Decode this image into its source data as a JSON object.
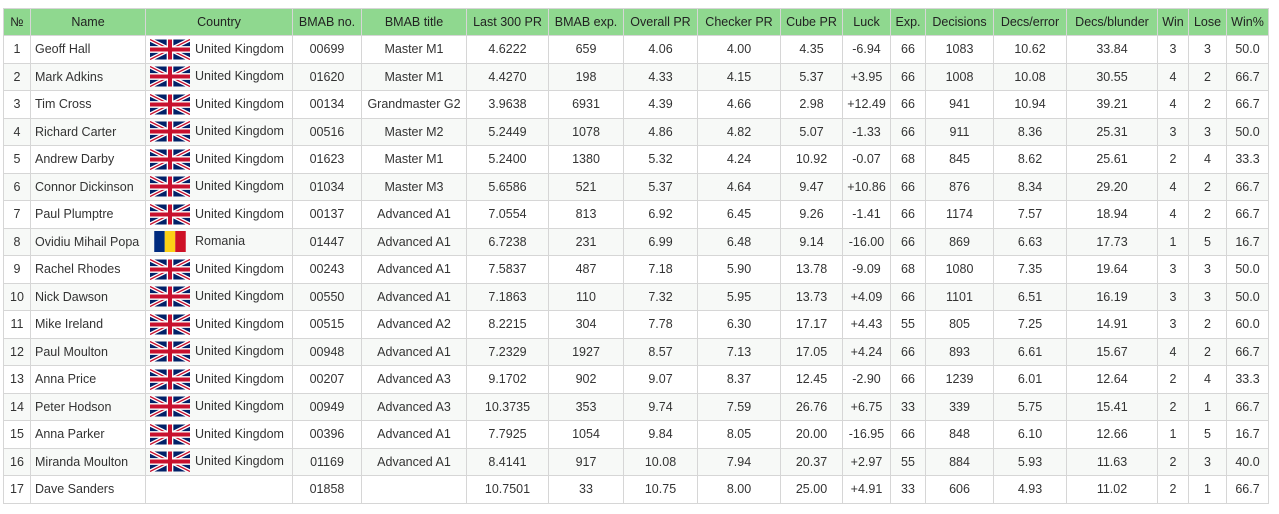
{
  "table": {
    "header": [
      "№",
      "Name",
      "Country",
      "BMAB no.",
      "BMAB title",
      "Last 300 PR",
      "BMAB exp.",
      "Overall PR",
      "Checker PR",
      "Cube PR",
      "Luck",
      "Exp.",
      "Decisions",
      "Decs/error",
      "Decs/blunder",
      "Win",
      "Lose",
      "Win%"
    ],
    "rows": [
      [
        "1",
        "Geoff Hall",
        "United Kingdom",
        "00699",
        "Master M1",
        "4.6222",
        "659",
        "4.06",
        "4.00",
        "4.35",
        "-6.94",
        "66",
        "1083",
        "10.62",
        "33.84",
        "3",
        "3",
        "50.0"
      ],
      [
        "2",
        "Mark Adkins",
        "United Kingdom",
        "01620",
        "Master M1",
        "4.4270",
        "198",
        "4.33",
        "4.15",
        "5.37",
        "+3.95",
        "66",
        "1008",
        "10.08",
        "30.55",
        "4",
        "2",
        "66.7"
      ],
      [
        "3",
        "Tim Cross",
        "United Kingdom",
        "00134",
        "Grandmaster G2",
        "3.9638",
        "6931",
        "4.39",
        "4.66",
        "2.98",
        "+12.49",
        "66",
        "941",
        "10.94",
        "39.21",
        "4",
        "2",
        "66.7"
      ],
      [
        "4",
        "Richard Carter",
        "United Kingdom",
        "00516",
        "Master M2",
        "5.2449",
        "1078",
        "4.86",
        "4.82",
        "5.07",
        "-1.33",
        "66",
        "911",
        "8.36",
        "25.31",
        "3",
        "3",
        "50.0"
      ],
      [
        "5",
        "Andrew Darby",
        "United Kingdom",
        "01623",
        "Master M1",
        "5.2400",
        "1380",
        "5.32",
        "4.24",
        "10.92",
        "-0.07",
        "68",
        "845",
        "8.62",
        "25.61",
        "2",
        "4",
        "33.3"
      ],
      [
        "6",
        "Connor Dickinson",
        "United Kingdom",
        "01034",
        "Master M3",
        "5.6586",
        "521",
        "5.37",
        "4.64",
        "9.47",
        "+10.86",
        "66",
        "876",
        "8.34",
        "29.20",
        "4",
        "2",
        "66.7"
      ],
      [
        "7",
        "Paul Plumptre",
        "United Kingdom",
        "00137",
        "Advanced A1",
        "7.0554",
        "813",
        "6.92",
        "6.45",
        "9.26",
        "-1.41",
        "66",
        "1174",
        "7.57",
        "18.94",
        "4",
        "2",
        "66.7"
      ],
      [
        "8",
        "Ovidiu Mihail Popa",
        "Romania",
        "01447",
        "Advanced A1",
        "6.7238",
        "231",
        "6.99",
        "6.48",
        "9.14",
        "-16.00",
        "66",
        "869",
        "6.63",
        "17.73",
        "1",
        "5",
        "16.7"
      ],
      [
        "9",
        "Rachel Rhodes",
        "United Kingdom",
        "00243",
        "Advanced A1",
        "7.5837",
        "487",
        "7.18",
        "5.90",
        "13.78",
        "-9.09",
        "68",
        "1080",
        "7.35",
        "19.64",
        "3",
        "3",
        "50.0"
      ],
      [
        "10",
        "Nick Dawson",
        "United Kingdom",
        "00550",
        "Advanced A1",
        "7.1863",
        "110",
        "7.32",
        "5.95",
        "13.73",
        "+4.09",
        "66",
        "1101",
        "6.51",
        "16.19",
        "3",
        "3",
        "50.0"
      ],
      [
        "11",
        "Mike Ireland",
        "United Kingdom",
        "00515",
        "Advanced A2",
        "8.2215",
        "304",
        "7.78",
        "6.30",
        "17.17",
        "+4.43",
        "55",
        "805",
        "7.25",
        "14.91",
        "3",
        "2",
        "60.0"
      ],
      [
        "12",
        "Paul Moulton",
        "United Kingdom",
        "00948",
        "Advanced A1",
        "7.2329",
        "1927",
        "8.57",
        "7.13",
        "17.05",
        "+4.24",
        "66",
        "893",
        "6.61",
        "15.67",
        "4",
        "2",
        "66.7"
      ],
      [
        "13",
        "Anna Price",
        "United Kingdom",
        "00207",
        "Advanced A3",
        "9.1702",
        "902",
        "9.07",
        "8.37",
        "12.45",
        "-2.90",
        "66",
        "1239",
        "6.01",
        "12.64",
        "2",
        "4",
        "33.3"
      ],
      [
        "14",
        "Peter Hodson",
        "United Kingdom",
        "00949",
        "Advanced A3",
        "10.3735",
        "353",
        "9.74",
        "7.59",
        "26.76",
        "+6.75",
        "33",
        "339",
        "5.75",
        "15.41",
        "2",
        "1",
        "66.7"
      ],
      [
        "15",
        "Anna Parker",
        "United Kingdom",
        "00396",
        "Advanced A1",
        "7.7925",
        "1054",
        "9.84",
        "8.05",
        "20.00",
        "-16.95",
        "66",
        "848",
        "6.10",
        "12.66",
        "1",
        "5",
        "16.7"
      ],
      [
        "16",
        "Miranda Moulton",
        "United Kingdom",
        "01169",
        "Advanced A1",
        "8.4141",
        "917",
        "10.08",
        "7.94",
        "20.37",
        "+2.97",
        "55",
        "884",
        "5.93",
        "11.63",
        "2",
        "3",
        "40.0"
      ],
      [
        "17",
        "Dave Sanders",
        null,
        "01858",
        null,
        "10.7501",
        "33",
        "10.75",
        "8.00",
        "25.00",
        "+4.91",
        "33",
        "606",
        "4.93",
        "11.02",
        "2",
        "1",
        "66.7"
      ]
    ]
  }
}
